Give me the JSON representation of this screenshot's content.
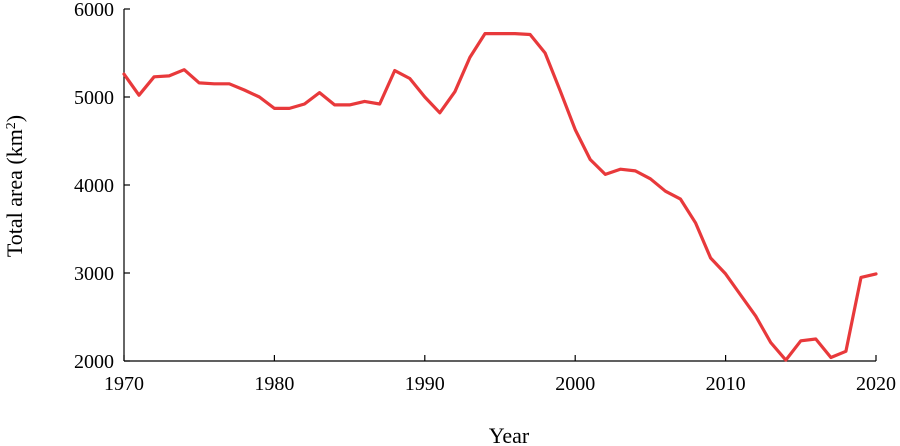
{
  "chart_data": {
    "type": "line",
    "title": "",
    "xlabel": "Year",
    "ylabel": "Total area (km",
    "ylabel_sup": "2",
    "ylabel_close": ")",
    "xlim": [
      1970,
      2020
    ],
    "ylim": [
      2000,
      6000
    ],
    "xticks": [
      1970,
      1980,
      1990,
      2000,
      2010,
      2020
    ],
    "yticks": [
      2000,
      3000,
      4000,
      5000,
      6000
    ],
    "grid": false,
    "legend": "none",
    "line_color": "#e8393b",
    "series": [
      {
        "x": [
          1970,
          1971,
          1972,
          1973,
          1974,
          1975,
          1976,
          1977,
          1978,
          1979,
          1980,
          1981,
          1982,
          1983,
          1984,
          1985,
          1986,
          1987,
          1988,
          1989,
          1990,
          1991,
          1992,
          1993,
          1994,
          1995,
          1996,
          1997,
          1998,
          1999,
          2000,
          2001,
          2002,
          2003,
          2004,
          2005,
          2006,
          2007,
          2008,
          2009,
          2010,
          2011,
          2012,
          2013,
          2014,
          2015,
          2016,
          2017,
          2018,
          2019,
          2020
        ],
        "values": [
          5260,
          5020,
          5230,
          5240,
          5310,
          5160,
          5150,
          5150,
          5080,
          5000,
          4870,
          4870,
          4920,
          5050,
          4910,
          4910,
          4950,
          4920,
          5300,
          5210,
          5000,
          4820,
          5060,
          5450,
          5720,
          5720,
          5720,
          5710,
          5500,
          5070,
          4630,
          4290,
          4120,
          4180,
          4160,
          4070,
          3930,
          3840,
          3570,
          3170,
          2990,
          2750,
          2510,
          2210,
          2010,
          2230,
          2250,
          2040,
          2110,
          2950,
          2990
        ]
      }
    ]
  }
}
